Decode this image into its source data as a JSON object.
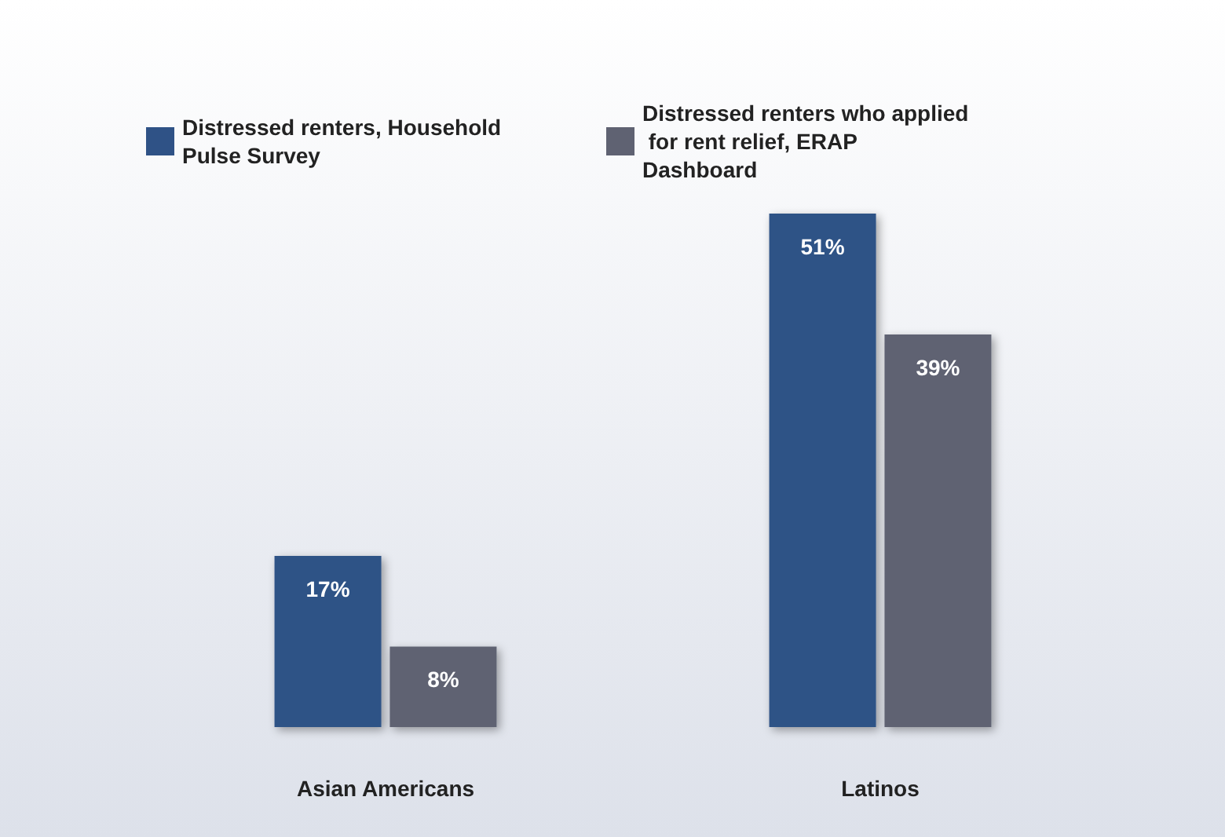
{
  "chart_data": {
    "type": "bar",
    "categories": [
      "Asian Americans",
      "Latinos"
    ],
    "series": [
      {
        "name": "Distressed renters, Household Pulse Survey",
        "color": "#2f5286",
        "values": [
          17,
          51
        ],
        "value_labels": [
          "17%",
          "51%"
        ]
      },
      {
        "name": "Distressed renters who applied for rent relief, ERAP Dashboard",
        "color": "#5f6272",
        "values": [
          8,
          39
        ],
        "value_labels": [
          "8%",
          "39%"
        ]
      }
    ],
    "legend": "top left"
  }
}
